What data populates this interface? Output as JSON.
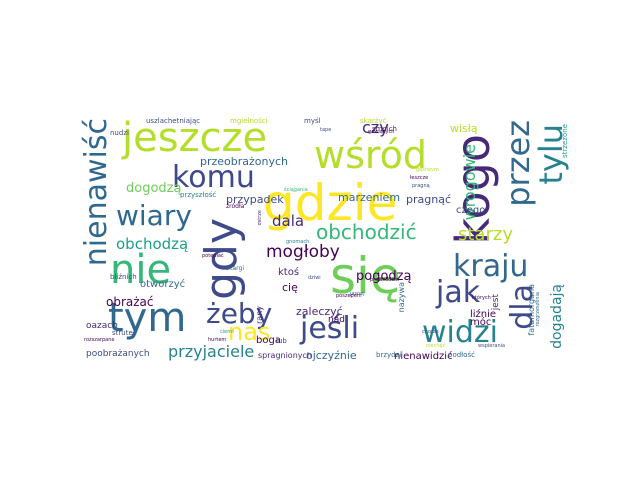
{
  "colors": {
    "background": "#ffffff",
    "palette": [
      "#440154",
      "#482878",
      "#3e4a89",
      "#31688e",
      "#26828e",
      "#1f9e89",
      "#35b779",
      "#6ece58",
      "#b5de2b",
      "#fde725"
    ]
  },
  "words": [
    {
      "text": "gdzie",
      "color": "#fde725"
    },
    {
      "text": "się",
      "color": "#6ece58"
    },
    {
      "text": "nie",
      "color": "#35b779"
    },
    {
      "text": "kogo",
      "color": "#482878"
    },
    {
      "text": "jeszcze",
      "color": "#b5de2b"
    },
    {
      "text": "gdy",
      "color": "#3e4a89"
    },
    {
      "text": "wśród",
      "color": "#b5de2b"
    },
    {
      "text": "nienawiść",
      "color": "#31688e"
    },
    {
      "text": "tym",
      "color": "#31688e"
    },
    {
      "text": "przez",
      "color": "#31688e"
    },
    {
      "text": "tylu",
      "color": "#26828e"
    },
    {
      "text": "kraju",
      "color": "#31688e"
    },
    {
      "text": "widzi",
      "color": "#26828e"
    },
    {
      "text": "jak",
      "color": "#3e4a89"
    },
    {
      "text": "dla",
      "color": "#3e4a89"
    },
    {
      "text": "jeśli",
      "color": "#3e4a89"
    },
    {
      "text": "żeby",
      "color": "#3e4a89"
    },
    {
      "text": "komu",
      "color": "#3e4a89"
    },
    {
      "text": "wiary",
      "color": "#31688e"
    },
    {
      "text": "obchodzić",
      "color": "#35b779"
    },
    {
      "text": "nas",
      "color": "#fde725"
    },
    {
      "text": "przyjaciele",
      "color": "#26828e"
    },
    {
      "text": "mogłoby",
      "color": "#440154"
    },
    {
      "text": "dala",
      "color": "#482878"
    },
    {
      "text": "obchodzą",
      "color": "#1f9e89"
    },
    {
      "text": "starzy",
      "color": "#b5de2b"
    },
    {
      "text": "czy",
      "color": "#482878"
    },
    {
      "text": "wrogowie",
      "color": "#35b779"
    },
    {
      "text": "dogodzą",
      "color": "#6ece58"
    },
    {
      "text": "dogadają",
      "color": "#26828e"
    },
    {
      "text": "pogodzą",
      "color": "#440154"
    },
    {
      "text": "przeobrażonych",
      "color": "#31688e"
    },
    {
      "text": "marzeniem",
      "color": "#31688e"
    },
    {
      "text": "pragnąć",
      "color": "#3e4a89"
    },
    {
      "text": "przypadek",
      "color": "#3e4a89"
    },
    {
      "text": "wisłą",
      "color": "#b5de2b"
    },
    {
      "text": "czego",
      "color": "#3e4a89"
    },
    {
      "text": "obrażać",
      "color": "#440154"
    },
    {
      "text": "otworzyć",
      "color": "#31688e"
    },
    {
      "text": "ktoś",
      "color": "#482878"
    },
    {
      "text": "zaleczyć",
      "color": "#482878"
    },
    {
      "text": "nad",
      "color": "#440154"
    },
    {
      "text": "boga",
      "color": "#440154"
    },
    {
      "text": "cię",
      "color": "#440154"
    },
    {
      "text": "móc",
      "color": "#440154"
    },
    {
      "text": "liźnie",
      "color": "#440154"
    },
    {
      "text": "jest",
      "color": "#482878"
    },
    {
      "text": "ojczyźnie",
      "color": "#31688e"
    },
    {
      "text": "poobrażanych",
      "color": "#3e4a89"
    },
    {
      "text": "nienawidzić",
      "color": "#440154"
    },
    {
      "text": "spragnionych",
      "color": "#482878"
    },
    {
      "text": "oazach",
      "color": "#482878"
    },
    {
      "text": "smoich",
      "color": "#482878"
    },
    {
      "text": "strzeżone",
      "color": "#1f9e89"
    },
    {
      "text": "fatamorgana",
      "color": "#31688e"
    },
    {
      "text": "nazywa",
      "color": "#31688e"
    },
    {
      "text": "uszlachetniając",
      "color": "#3e4a89"
    },
    {
      "text": "mgielności",
      "color": "#b5de2b"
    },
    {
      "text": "myśl",
      "color": "#3e4a89"
    },
    {
      "text": "skarżyć",
      "color": "#b5de2b"
    },
    {
      "text": "gawiących",
      "color": "#440154"
    },
    {
      "text": "nudzi",
      "color": "#3e4a89"
    },
    {
      "text": "przyszłość",
      "color": "#26828e"
    },
    {
      "text": "źródła",
      "color": "#440154"
    },
    {
      "text": "bliźnich",
      "color": "#3e4a89"
    },
    {
      "text": "strute",
      "color": "#3e4a89"
    },
    {
      "text": "rany",
      "color": "#482878"
    },
    {
      "text": "lub",
      "color": "#3e4a89"
    },
    {
      "text": "brzydzi",
      "color": "#31688e"
    },
    {
      "text": "podłość",
      "color": "#31688e"
    },
    {
      "text": "skargi",
      "color": "#31688e"
    },
    {
      "text": "tape",
      "color": "#3e4a89"
    },
    {
      "text": "ostrze",
      "color": "#482878"
    },
    {
      "text": "jasnej",
      "color": "#31688e"
    },
    {
      "text": "pragną",
      "color": "#3e4a89"
    },
    {
      "text": "łeszcze",
      "color": "#440154"
    },
    {
      "text": "gnomach",
      "color": "#26828e"
    },
    {
      "text": "poszepem",
      "color": "#440154"
    },
    {
      "text": "potępiać",
      "color": "#440154"
    },
    {
      "text": "cierni",
      "color": "#1f9e89"
    },
    {
      "text": "których",
      "color": "#440154"
    },
    {
      "text": "chorze",
      "color": "#3e4a89"
    },
    {
      "text": "rozgrzeszenia",
      "color": "#31688e"
    },
    {
      "text": "gęstwym",
      "color": "#b5de2b"
    },
    {
      "text": "prawnikiem",
      "color": "#440154"
    },
    {
      "text": "ściągania",
      "color": "#35b779"
    },
    {
      "text": "dziwi",
      "color": "#3e4a89"
    },
    {
      "text": "niechęć",
      "color": "#b5de2b"
    },
    {
      "text": "rozszarpane",
      "color": "#440154"
    },
    {
      "text": "wspierania",
      "color": "#3e4a89"
    },
    {
      "text": "hurtem",
      "color": "#440154"
    }
  ]
}
